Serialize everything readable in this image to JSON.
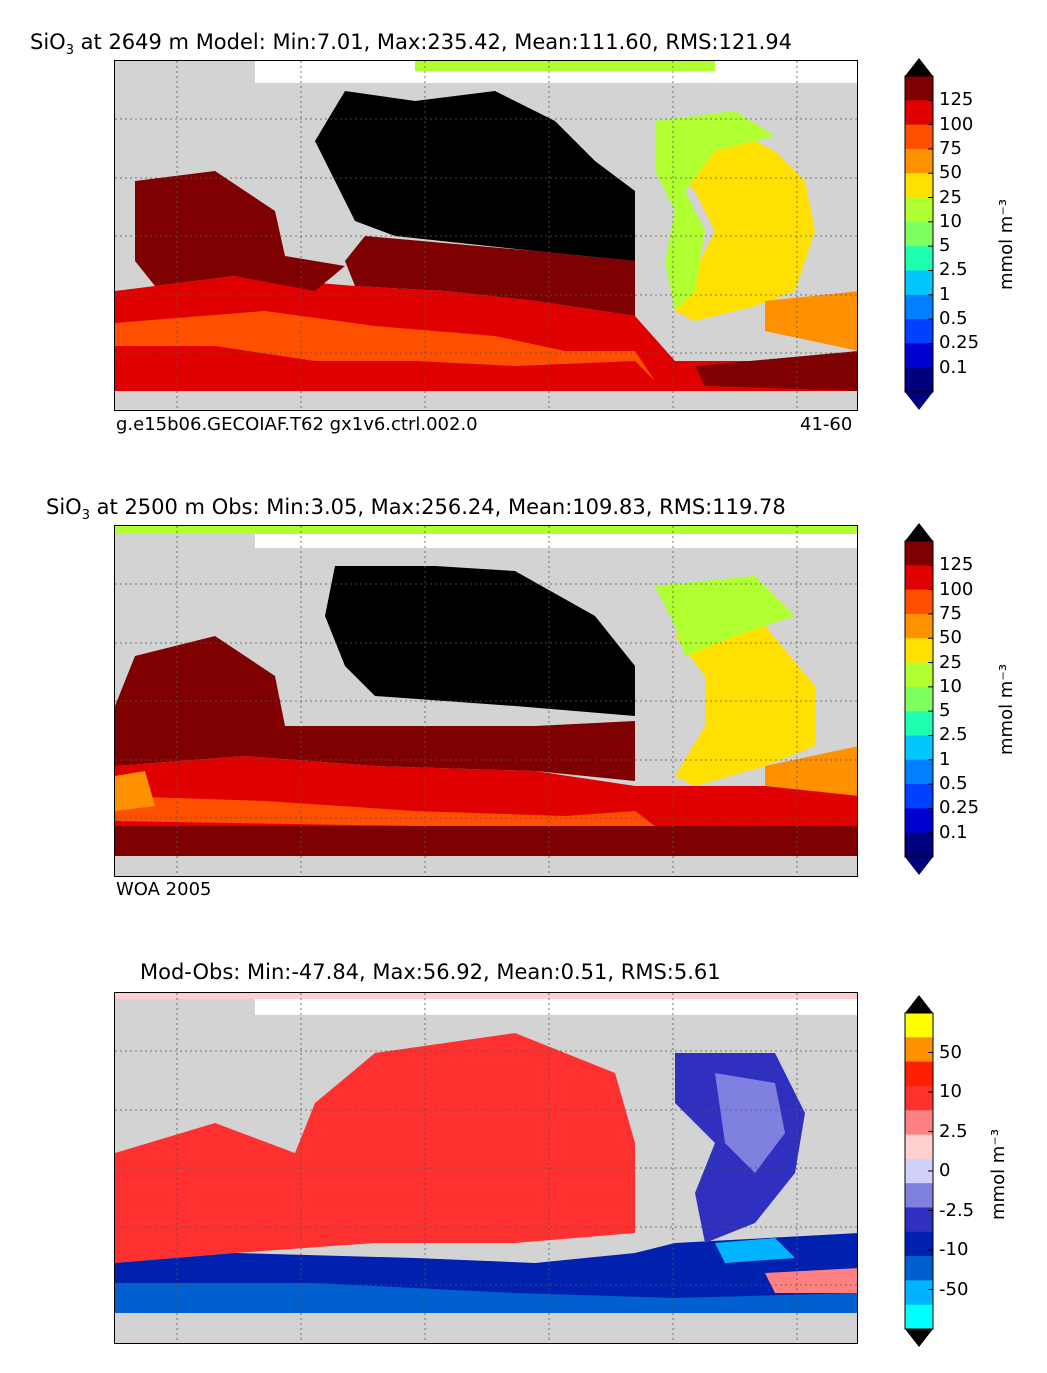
{
  "panels": [
    {
      "id": "model",
      "title_species": "SiO",
      "title_sub": "3",
      "title_rest": " at 2649 m Model: Min:7.01, Max:235.42, Mean:111.60, RMS:121.94",
      "note_left": "g.e15b06.GECOIAF.T62 gx1v6.ctrl.002.0",
      "note_right": "41-60",
      "units": "mmol m⁻³"
    },
    {
      "id": "obs",
      "title_species": "SiO",
      "title_sub": "3",
      "title_rest": " at 2500 m Obs: Min:3.05, Max:256.24, Mean:109.83, RMS:119.78",
      "note_left": "WOA 2005",
      "note_right": "",
      "units": "mmol m⁻³"
    },
    {
      "id": "diff",
      "title_species": "",
      "title_sub": "",
      "title_rest": "Mod-Obs: Min:-47.84, Max:56.92, Mean:0.51, RMS:5.61",
      "note_left": "",
      "note_right": "",
      "units": "mmol m⁻³"
    }
  ],
  "colorbars": {
    "abs": {
      "colors": [
        "#00007f",
        "#0000d0",
        "#0040ff",
        "#0080ff",
        "#00c8ff",
        "#20ffb0",
        "#80ff60",
        "#b0ff30",
        "#ffe000",
        "#ff9000",
        "#ff5000",
        "#e00000",
        "#7f0000"
      ],
      "over": "#000000",
      "under": "#00007f",
      "labels": [
        "0.1",
        "0.25",
        "0.5",
        "1",
        "2.5",
        "5",
        "10",
        "25",
        "50",
        "75",
        "100",
        "125"
      ]
    },
    "diff": {
      "colors": [
        "#00ffff",
        "#00b4ff",
        "#0060d0",
        "#0020b0",
        "#3030c0",
        "#8080e0",
        "#d0d0f8",
        "#ffd0d0",
        "#ff8080",
        "#ff3030",
        "#ff2000",
        "#ff9000",
        "#ffff00"
      ],
      "over": "#000000",
      "under": "#000000",
      "labels": [
        "-50",
        "-10",
        "-2.5",
        "0",
        "2.5",
        "10",
        "50"
      ]
    }
  },
  "colors": {
    "land": "#d3d3d3",
    "pacific_model": "#000000",
    "southern_red": "#e00000",
    "atlantic_yellow": "#ffe000",
    "indian_darkred": "#7f0000"
  }
}
